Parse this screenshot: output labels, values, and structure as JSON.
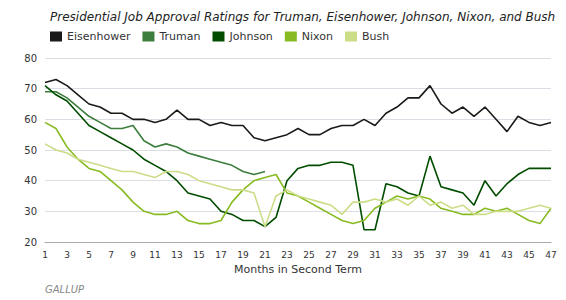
{
  "chart_data": {
    "type": "line",
    "title": "Presidential Job Approval Ratings for Truman, Eisenhower, Johnson, Nixon, and Bush",
    "xlabel": "Months in Second Term",
    "annotation": "GALLUP",
    "xlim": [
      1,
      47
    ],
    "xticks": [
      1,
      3,
      5,
      7,
      9,
      11,
      13,
      15,
      17,
      19,
      21,
      23,
      25,
      27,
      29,
      31,
      33,
      35,
      37,
      39,
      41,
      43,
      45,
      47
    ],
    "ylim": [
      20,
      80
    ],
    "yticks": [
      20,
      30,
      40,
      50,
      60,
      70,
      80
    ],
    "grid": true,
    "legend": "upper left",
    "series": [
      {
        "name": "Eisenhower",
        "color": "#1a1a1a",
        "x": [
          1,
          2,
          3,
          4,
          5,
          6,
          7,
          8,
          9,
          10,
          11,
          12,
          13,
          14,
          15,
          16,
          17,
          18,
          19,
          20,
          21,
          22,
          23,
          24,
          25,
          26,
          27,
          28,
          29,
          30,
          31,
          32,
          33,
          34,
          35,
          36,
          37,
          38,
          39,
          40,
          41,
          42,
          43,
          44,
          45,
          46,
          47
        ],
        "values": [
          72,
          73,
          71,
          68,
          65,
          64,
          62,
          62,
          60,
          60,
          59,
          60,
          63,
          60,
          60,
          58,
          59,
          58,
          58,
          54,
          53,
          54,
          55,
          57,
          55,
          55,
          57,
          58,
          58,
          60,
          58,
          62,
          64,
          67,
          67,
          71,
          65,
          62,
          64,
          61,
          64,
          60,
          56,
          61,
          59,
          58,
          59
        ]
      },
      {
        "name": "Truman",
        "color": "#3d7d3d",
        "x": [
          1,
          2,
          3,
          4,
          5,
          6,
          7,
          8,
          9,
          10,
          11,
          12,
          13,
          14,
          15,
          16,
          17,
          18,
          19,
          20,
          21
        ],
        "values": [
          69,
          69,
          67,
          64,
          61,
          59,
          57,
          57,
          58,
          53,
          51,
          52,
          51,
          49,
          48,
          47,
          46,
          45,
          43,
          42,
          43
        ]
      },
      {
        "name": "Johnson",
        "color": "#004d00",
        "x": [
          1,
          2,
          3,
          4,
          5,
          6,
          7,
          8,
          9,
          10,
          11,
          12,
          13,
          14,
          15,
          16,
          17,
          18,
          19,
          20,
          21,
          22,
          23,
          24,
          25,
          26,
          27,
          28,
          29,
          30,
          31,
          32,
          33,
          34,
          35,
          36,
          37,
          38,
          39,
          40,
          41,
          42,
          43,
          44,
          45,
          46,
          47
        ],
        "values": [
          71,
          68,
          66,
          62,
          58,
          56,
          54,
          52,
          50,
          47,
          45,
          43,
          40,
          36,
          35,
          34,
          30,
          29,
          27,
          27,
          25,
          28,
          40,
          44,
          45,
          45,
          46,
          46,
          45,
          24,
          24,
          39,
          38,
          36,
          35,
          48,
          38,
          37,
          36,
          32,
          40,
          35,
          39,
          42,
          44,
          44,
          44
        ]
      },
      {
        "name": "Nixon",
        "color": "#88bb22",
        "x": [
          1,
          2,
          3,
          4,
          5,
          6,
          7,
          8,
          9,
          10,
          11,
          12,
          13,
          14,
          15,
          16,
          17,
          18,
          19,
          20,
          21,
          22,
          23,
          24,
          25,
          26,
          27,
          28,
          29,
          30,
          31,
          32,
          33,
          34,
          35,
          36,
          37,
          38,
          39,
          40,
          41,
          42,
          43,
          44,
          45,
          46,
          47
        ],
        "values": [
          59,
          57,
          51,
          47,
          44,
          43,
          40,
          37,
          33,
          30,
          29,
          29,
          30,
          27,
          26,
          26,
          27,
          33,
          37,
          40,
          41,
          42,
          36,
          35,
          33,
          31,
          29,
          27,
          26,
          27,
          31,
          33,
          35,
          34,
          35,
          34,
          31,
          30,
          29,
          29,
          31,
          30,
          31,
          29,
          27,
          26,
          31
        ]
      },
      {
        "name": "Bush",
        "color": "#ccdd88",
        "x": [
          1,
          2,
          3,
          4,
          5,
          6,
          7,
          8,
          9,
          10,
          11,
          12,
          13,
          14,
          15,
          16,
          17,
          18,
          19,
          20,
          21,
          22,
          23,
          24,
          25,
          26,
          27,
          28,
          29,
          30,
          31,
          32,
          33,
          34,
          35,
          36,
          37,
          38,
          39,
          40,
          41,
          42,
          43,
          44,
          45,
          46,
          47
        ],
        "values": [
          52,
          50,
          49,
          47,
          46,
          45,
          44,
          43,
          43,
          42,
          41,
          43,
          43,
          42,
          40,
          39,
          38,
          37,
          37,
          36,
          25,
          35,
          37,
          35,
          34,
          33,
          32,
          29,
          33,
          33,
          34,
          33,
          34,
          32,
          35,
          32,
          33,
          31,
          32,
          29,
          29,
          30,
          30,
          30,
          31,
          32,
          31
        ]
      }
    ]
  }
}
